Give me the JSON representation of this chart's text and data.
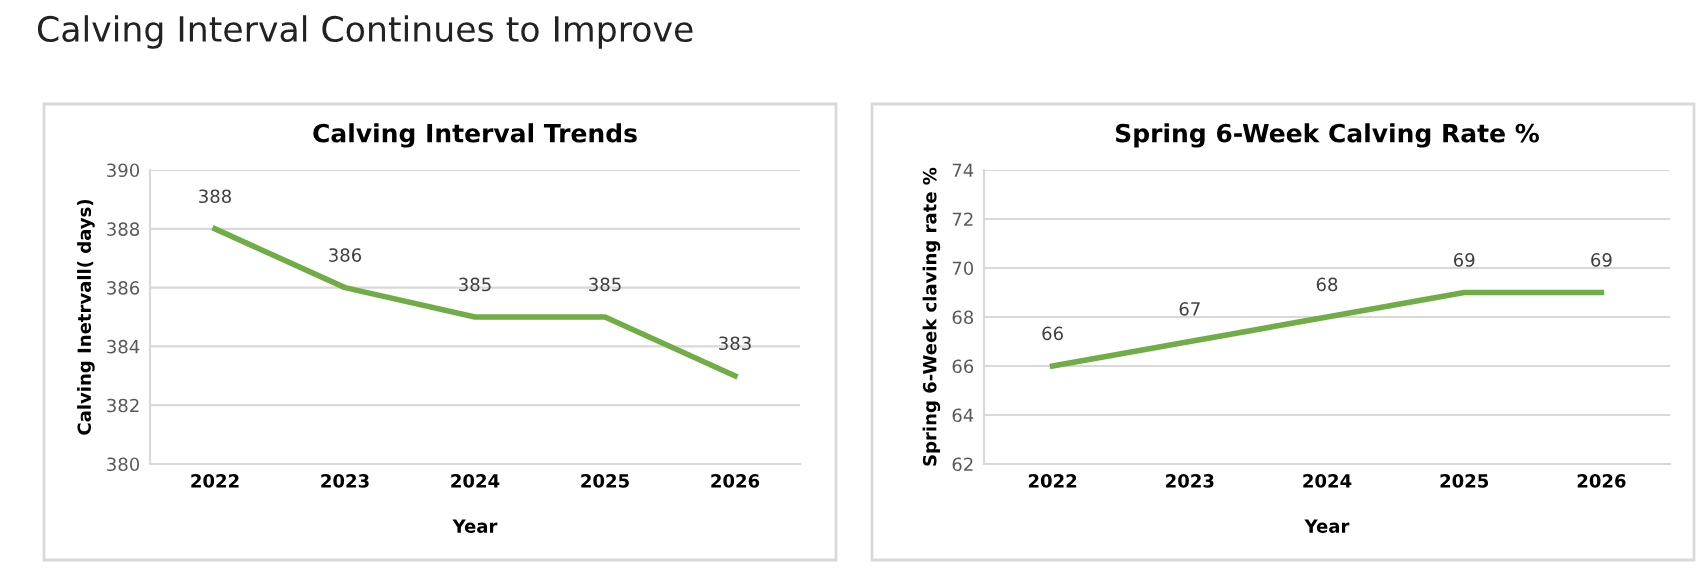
{
  "chart_data": [
    {
      "type": "line",
      "title": "Calving Interval Trends",
      "annotations": [
        "Calving Interval Continues to Improve"
      ],
      "xlabel": "Year",
      "ylabel": "Calving Inetrvall( days)",
      "categories": [
        "2022",
        "2023",
        "2024",
        "2025",
        "2026"
      ],
      "series": [
        {
          "color": "#70ad47",
          "values": [
            388,
            386,
            385,
            385,
            383
          ]
        }
      ],
      "ylim": [
        380,
        390
      ],
      "yticks": [
        380,
        382,
        384,
        386,
        388,
        390
      ],
      "grid": "y",
      "data_labels": true
    },
    {
      "type": "line",
      "title": "Spring 6-Week Calving Rate %",
      "xlabel": "Year",
      "ylabel": "Spring 6-Week claving rate %",
      "categories": [
        "2022",
        "2023",
        "2024",
        "2025",
        "2026"
      ],
      "series": [
        {
          "color": "#70ad47",
          "values": [
            66,
            67,
            68,
            69,
            69
          ]
        }
      ],
      "ylim": [
        62,
        74
      ],
      "yticks": [
        62,
        64,
        66,
        68,
        70,
        72,
        74
      ],
      "grid": "y",
      "data_labels": true
    }
  ]
}
